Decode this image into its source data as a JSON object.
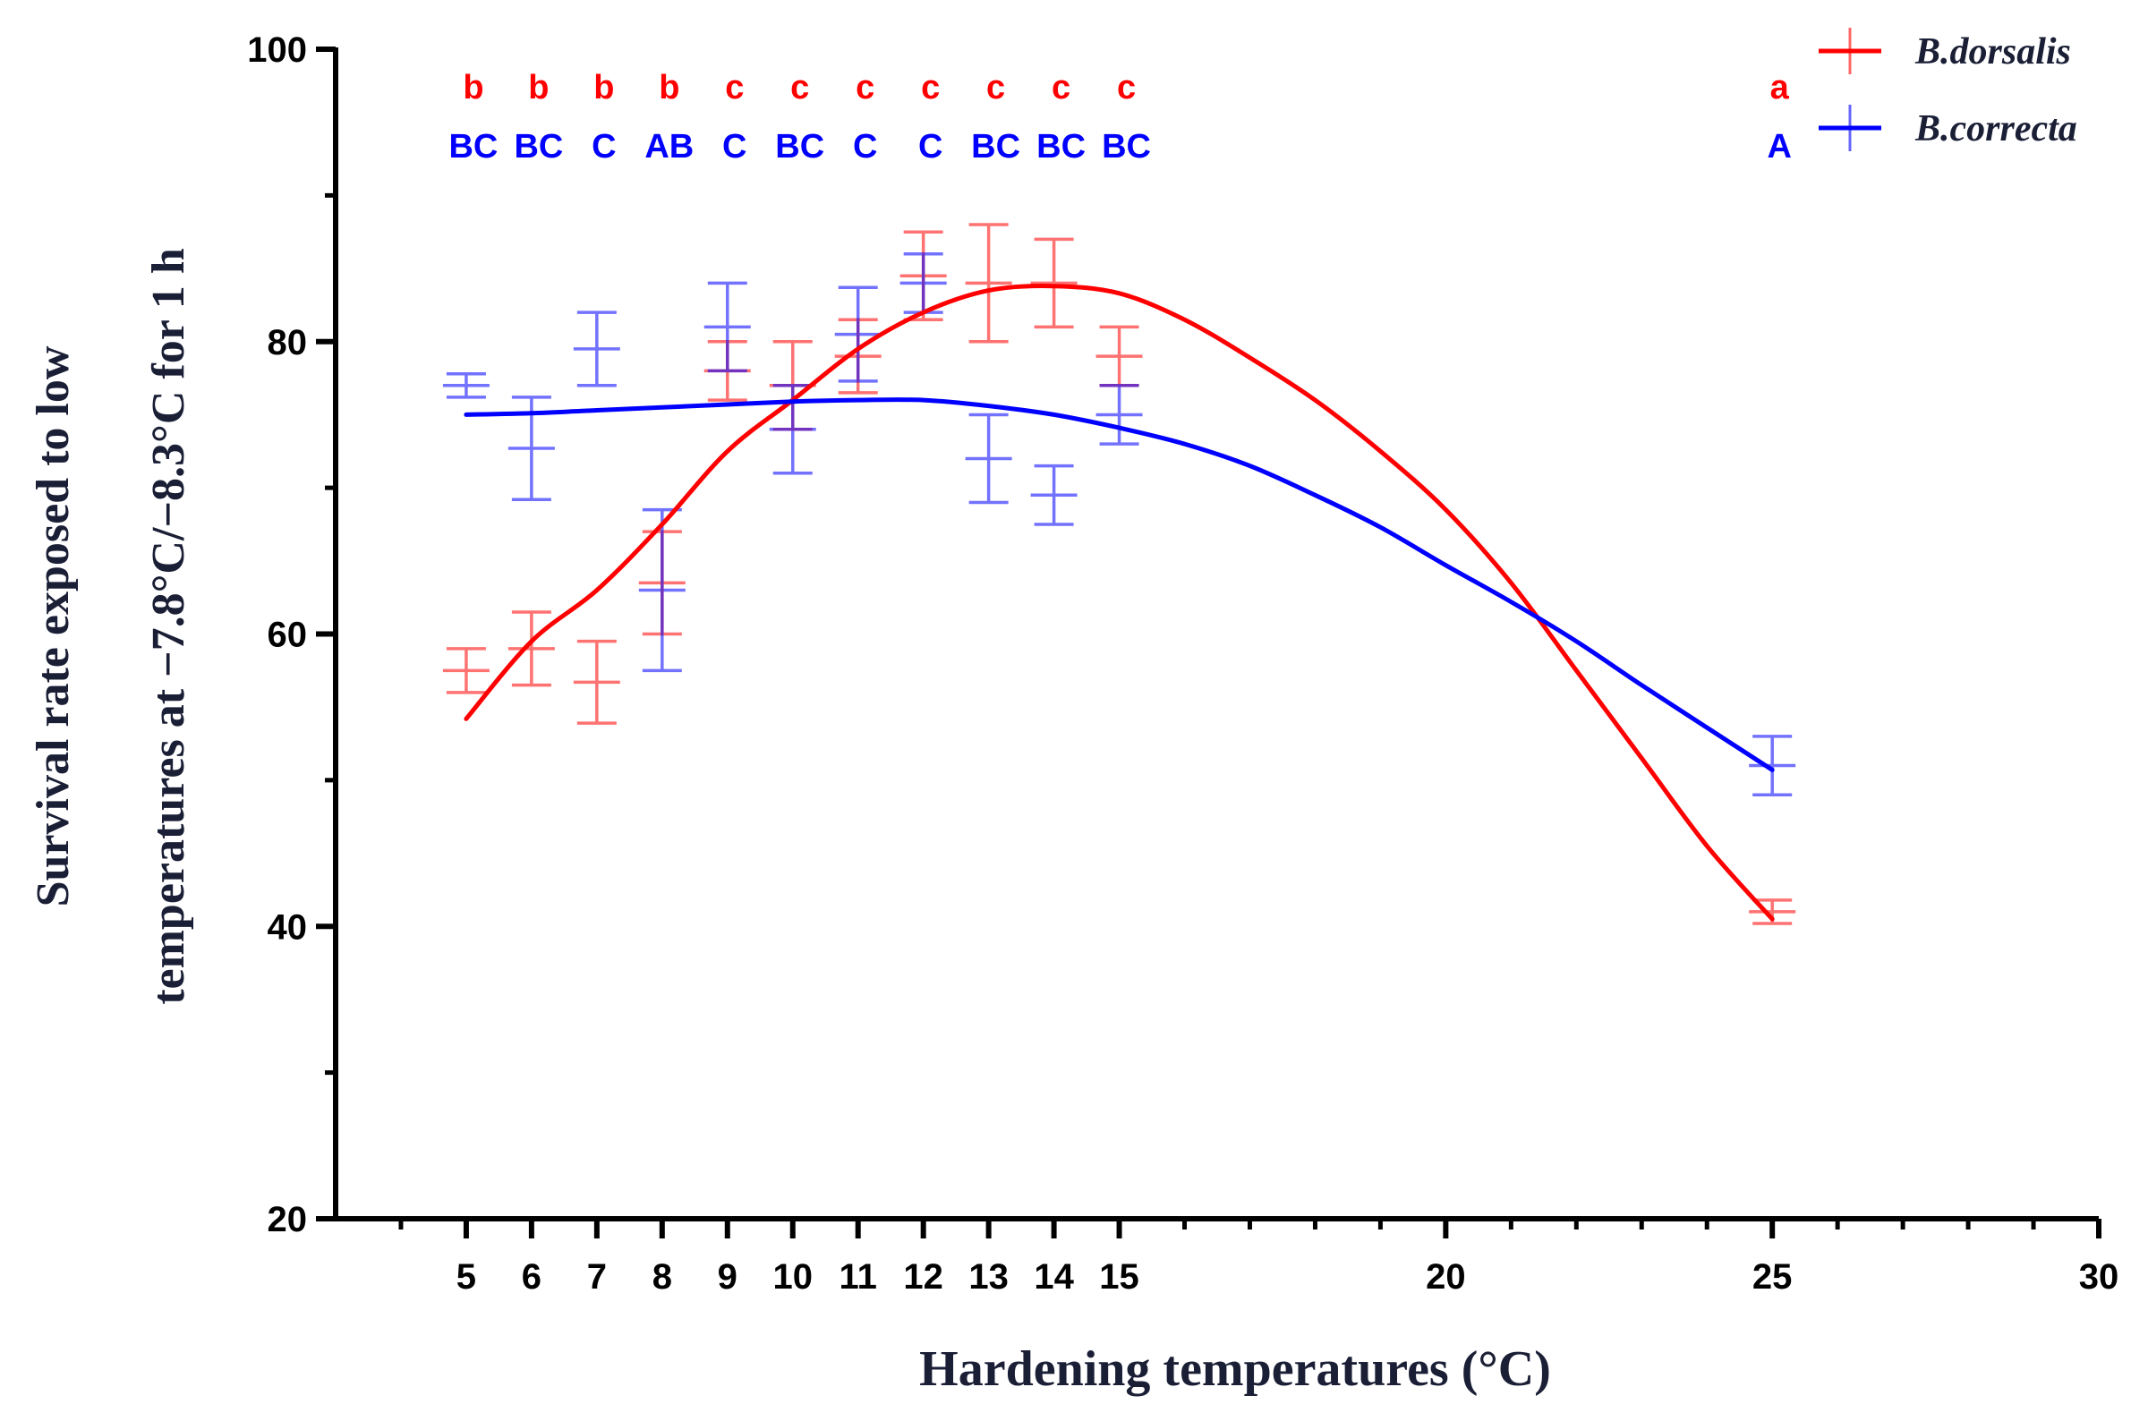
{
  "chart_data": {
    "type": "line",
    "title": "",
    "xlabel": "Hardening temperatures (°C)",
    "ylabel_line1": "Survival rate exposed to low",
    "ylabel_line2": "temperatures at −7.8°C/−8.3°C for 1 h",
    "xlim": [
      3,
      30
    ],
    "ylim": [
      20,
      100
    ],
    "xticks": [
      5,
      6,
      7,
      8,
      9,
      10,
      11,
      12,
      13,
      14,
      15,
      20,
      25,
      30
    ],
    "yticks": [
      20,
      40,
      60,
      80,
      100
    ],
    "legend_position": "top-right",
    "series": [
      {
        "name": "B.dorsalis",
        "color": "#ff0000",
        "points": [
          {
            "x": 5,
            "y": 57.5,
            "err": 1.5
          },
          {
            "x": 6,
            "y": 59.0,
            "err": 2.5
          },
          {
            "x": 7,
            "y": 56.7,
            "err": 2.8
          },
          {
            "x": 8,
            "y": 63.5,
            "err": 3.5
          },
          {
            "x": 9,
            "y": 78.0,
            "err": 2.0
          },
          {
            "x": 10,
            "y": 77.0,
            "err": 3.0
          },
          {
            "x": 11,
            "y": 79.0,
            "err": 2.5
          },
          {
            "x": 12,
            "y": 84.5,
            "err": 3.0
          },
          {
            "x": 13,
            "y": 84.0,
            "err": 4.0
          },
          {
            "x": 14,
            "y": 84.0,
            "err": 3.0
          },
          {
            "x": 15,
            "y": 79.0,
            "err": 2.0
          },
          {
            "x": 25,
            "y": 41.0,
            "err": 0.8
          }
        ],
        "fit": [
          [
            5,
            54.2
          ],
          [
            6,
            59.5
          ],
          [
            7,
            63.0
          ],
          [
            8,
            67.5
          ],
          [
            9,
            72.5
          ],
          [
            10,
            76.0
          ],
          [
            11,
            79.5
          ],
          [
            12,
            82.0
          ],
          [
            13,
            83.5
          ],
          [
            14,
            83.8
          ],
          [
            15,
            83.3
          ],
          [
            16,
            81.5
          ],
          [
            17,
            78.9
          ],
          [
            18,
            76.0
          ],
          [
            19,
            72.5
          ],
          [
            20,
            68.5
          ],
          [
            21,
            63.5
          ],
          [
            22,
            57.5
          ],
          [
            23,
            51.5
          ],
          [
            24,
            45.5
          ],
          [
            25,
            40.5
          ]
        ],
        "significance": [
          "b",
          "b",
          "b",
          "b",
          "c",
          "c",
          "c",
          "c",
          "c",
          "c",
          "c",
          "a"
        ]
      },
      {
        "name": "B.correcta",
        "color": "#0000ff",
        "points": [
          {
            "x": 5,
            "y": 77.0,
            "err": 0.8
          },
          {
            "x": 6,
            "y": 72.7,
            "err": 3.5
          },
          {
            "x": 7,
            "y": 79.5,
            "err": 2.5
          },
          {
            "x": 8,
            "y": 63.0,
            "err": 5.5
          },
          {
            "x": 9,
            "y": 81.0,
            "err": 3.0
          },
          {
            "x": 10,
            "y": 74.0,
            "err": 3.0
          },
          {
            "x": 11,
            "y": 80.5,
            "err": 3.2
          },
          {
            "x": 12,
            "y": 84.0,
            "err": 2.0
          },
          {
            "x": 13,
            "y": 72.0,
            "err": 3.0
          },
          {
            "x": 14,
            "y": 69.5,
            "err": 2.0
          },
          {
            "x": 15,
            "y": 75.0,
            "err": 2.0
          },
          {
            "x": 25,
            "y": 51.0,
            "err": 2.0
          }
        ],
        "fit": [
          [
            5,
            75.0
          ],
          [
            6,
            75.1
          ],
          [
            7,
            75.3
          ],
          [
            8,
            75.5
          ],
          [
            9,
            75.7
          ],
          [
            10,
            75.9
          ],
          [
            11,
            76.0
          ],
          [
            12,
            76.0
          ],
          [
            13,
            75.6
          ],
          [
            14,
            75.0
          ],
          [
            15,
            74.1
          ],
          [
            16,
            73.0
          ],
          [
            17,
            71.5
          ],
          [
            18,
            69.5
          ],
          [
            19,
            67.3
          ],
          [
            20,
            64.7
          ],
          [
            21,
            62.2
          ],
          [
            22,
            59.5
          ],
          [
            23,
            56.5
          ],
          [
            24,
            53.6
          ],
          [
            25,
            50.7
          ]
        ],
        "significance": [
          "BC",
          "BC",
          "C",
          "AB",
          "C",
          "BC",
          "C",
          "C",
          "BC",
          "BC",
          "BC",
          "A"
        ]
      }
    ]
  }
}
